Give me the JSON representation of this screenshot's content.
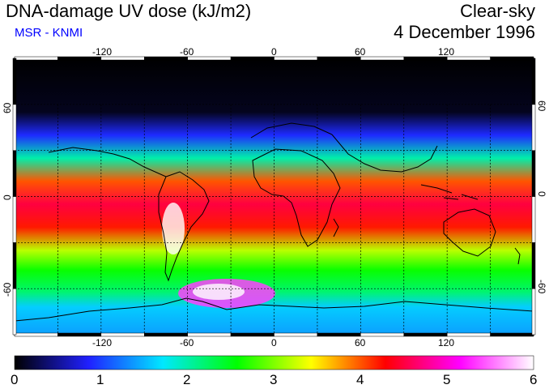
{
  "header": {
    "title": "DNA-damage UV dose (kJ/m2)",
    "source": "MSR - KNMI",
    "product": "Clear-sky",
    "date": "4 December 1996"
  },
  "map": {
    "projection": "equirectangular",
    "lon_range": [
      -180,
      180
    ],
    "lat_range": [
      -90,
      90
    ],
    "lon_ticks": [
      "-120",
      "-60",
      "0",
      "60",
      "120"
    ],
    "lat_ticks": [
      "60",
      "0",
      "-60"
    ],
    "lat_ticks_right": [
      "60",
      "0",
      "-60"
    ],
    "grid_spacing_deg": 30,
    "field_description_bands": [
      {
        "lat": 90,
        "value": 0.0
      },
      {
        "lat": 55,
        "value": 0.1
      },
      {
        "lat": 40,
        "value": 0.9
      },
      {
        "lat": 25,
        "value": 2.0
      },
      {
        "lat": 10,
        "value": 4.0
      },
      {
        "lat": -5,
        "value": 4.5
      },
      {
        "lat": -20,
        "value": 4.2
      },
      {
        "lat": -35,
        "value": 3.2
      },
      {
        "lat": -48,
        "value": 2.6
      },
      {
        "lat": -62,
        "value": 2.2
      },
      {
        "lat": -72,
        "value": 1.6
      },
      {
        "lat": -90,
        "value": 1.4
      }
    ]
  },
  "colorbar": {
    "min": 0,
    "max": 6,
    "tick_labels": [
      "0",
      "1",
      "2",
      "3",
      "4",
      "5",
      "6"
    ],
    "colors": [
      "#000000",
      "#2020ff",
      "#00e8ff",
      "#00ff00",
      "#ffff00",
      "#ff0000",
      "#ff00ff",
      "#ffffff"
    ]
  }
}
